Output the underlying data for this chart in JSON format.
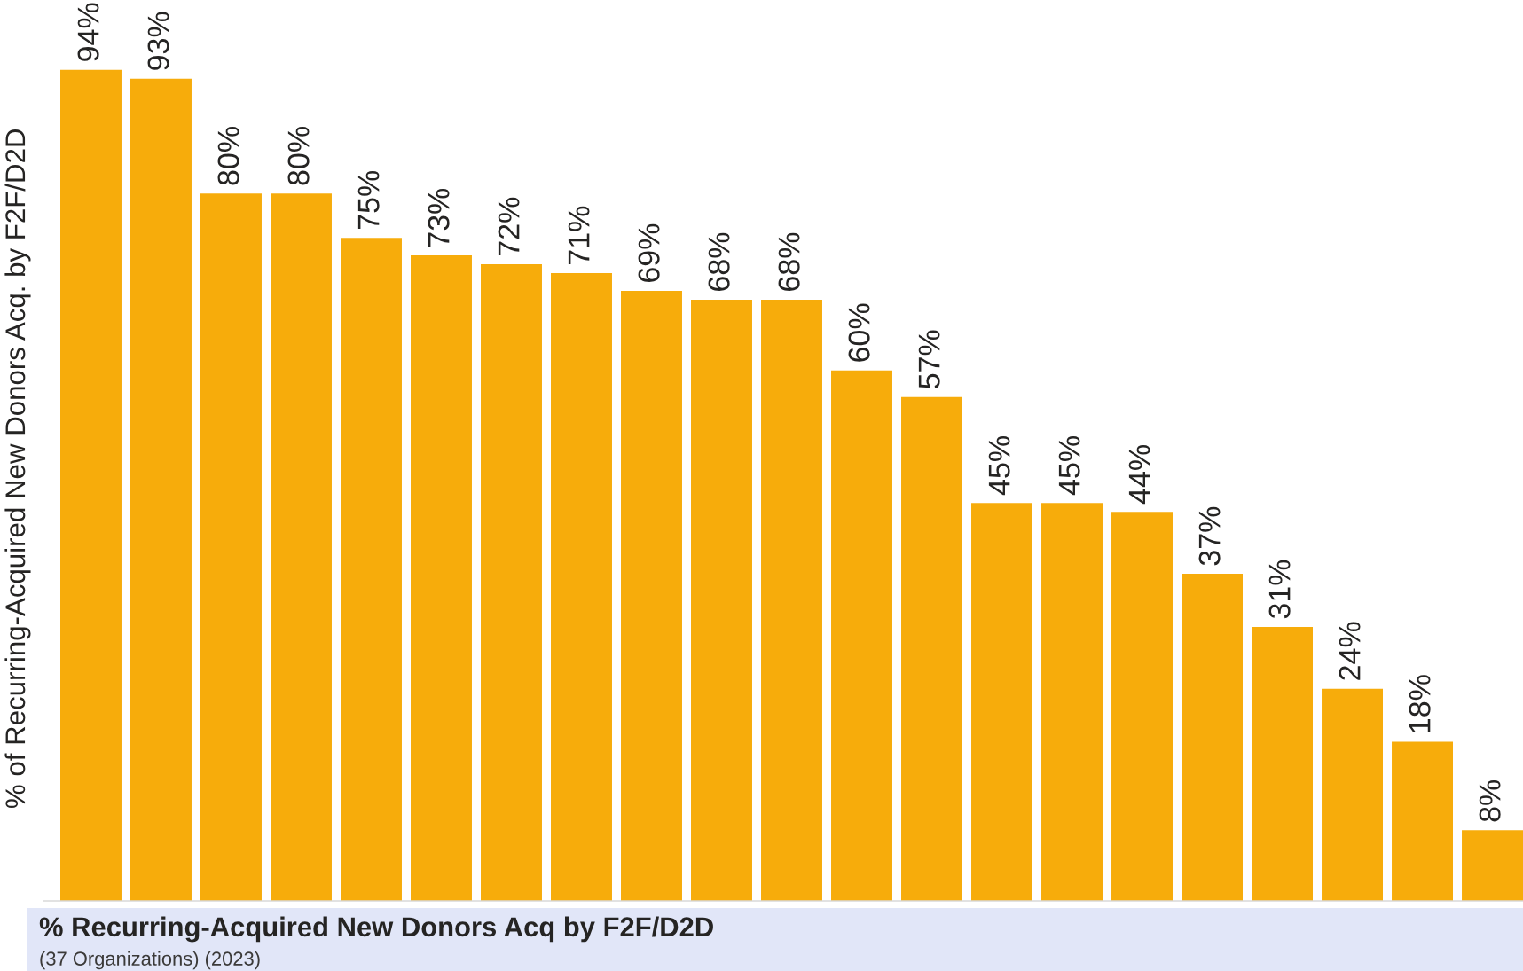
{
  "chart_data": {
    "type": "bar",
    "title": "% Recurring-Acquired New Donors Acq by F2F/D2D",
    "subtitle": "(37 Organizations) (2023)",
    "ylabel": "% of Recurring-Acquired New Donors Acq. by F2F/D2D",
    "categories": [
      null,
      null,
      null,
      null,
      null,
      null,
      null,
      null,
      null,
      null,
      null,
      null,
      null,
      null,
      null,
      null,
      null,
      null,
      null,
      null,
      null
    ],
    "values": [
      94,
      93,
      80,
      80,
      75,
      73,
      72,
      71,
      69,
      68,
      68,
      60,
      57,
      45,
      45,
      44,
      37,
      31,
      24,
      18,
      8
    ],
    "value_labels": [
      "94%",
      "93%",
      "80%",
      "80%",
      "75%",
      "73%",
      "72%",
      "71%",
      "69%",
      "68%",
      "68%",
      "60%",
      "57%",
      "45%",
      "45%",
      "44%",
      "37%",
      "31%",
      "24%",
      "18%",
      "8%"
    ],
    "color": "#f7ac0b",
    "tick_labels": false
  }
}
